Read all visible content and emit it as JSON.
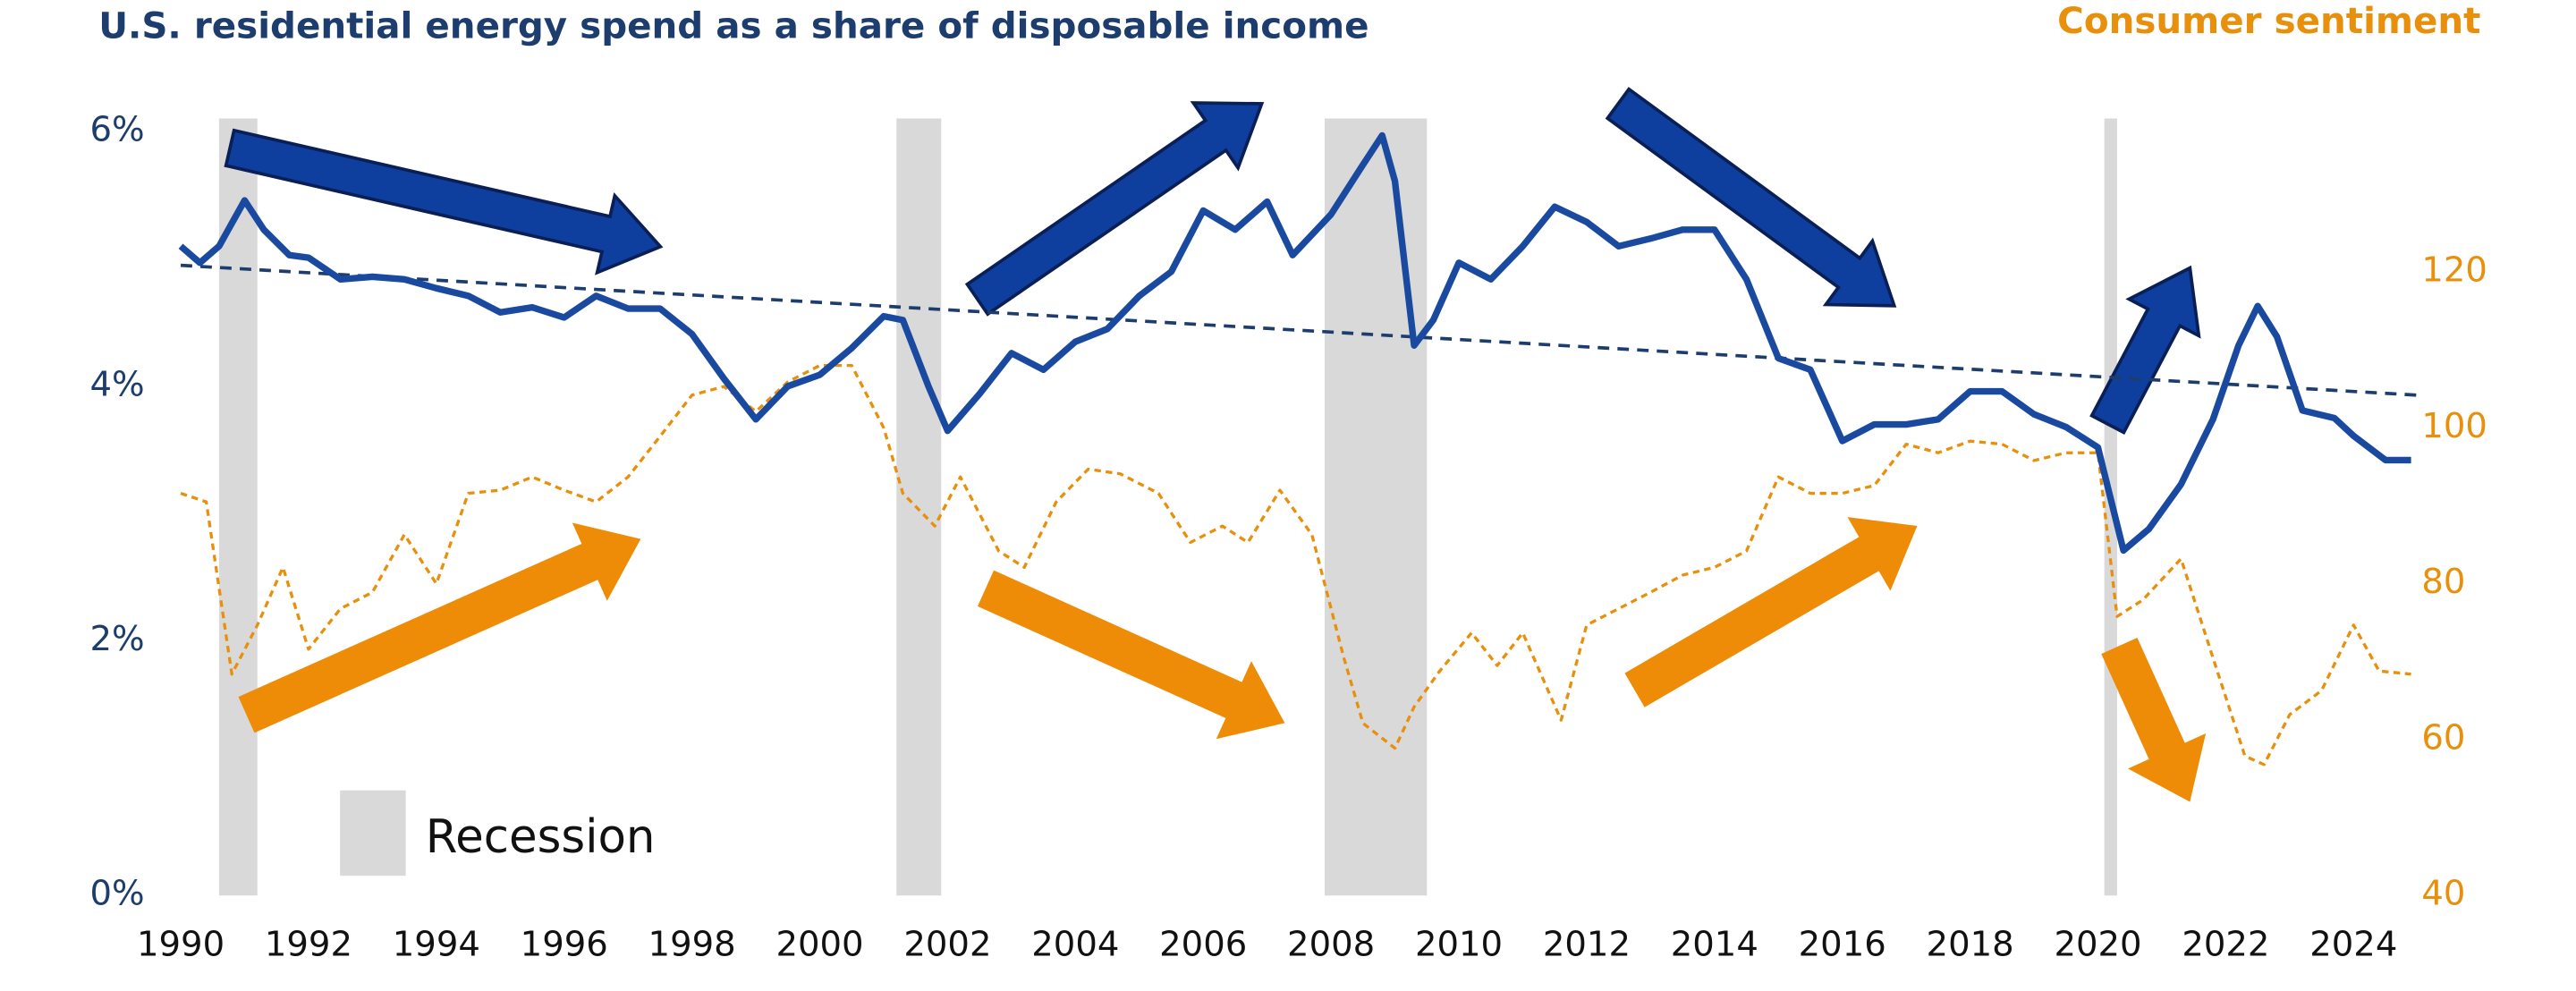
{
  "chart_data": {
    "type": "line",
    "title": "U.S. residential energy spend as a share of disposable income",
    "y2_title": "Consumer sentiment",
    "legend_label": "Recession",
    "xlim": [
      1990,
      2025
    ],
    "xticks": [
      1990,
      1992,
      1994,
      1996,
      1998,
      2000,
      2002,
      2004,
      2006,
      2008,
      2010,
      2012,
      2014,
      2016,
      2018,
      2020,
      2022,
      2024
    ],
    "ylim": [
      0,
      6
    ],
    "yticks": [
      {
        "value": 0,
        "label": "0%"
      },
      {
        "value": 2,
        "label": "2%"
      },
      {
        "value": 4,
        "label": "4%"
      },
      {
        "value": 6,
        "label": "6%"
      }
    ],
    "y2lim": [
      40,
      138
    ],
    "y2ticks": [
      40,
      60,
      80,
      100,
      120
    ],
    "recessions": [
      [
        1990.6,
        1991.2
      ],
      [
        2001.2,
        2001.9
      ],
      [
        2007.9,
        2009.5
      ],
      [
        2020.1,
        2020.3
      ]
    ],
    "recession_color": "#d9d9d9",
    "trendline": {
      "color": "#1d3d6e",
      "x": [
        1990,
        2025
      ],
      "values": [
        4.95,
        3.93
      ]
    },
    "series": [
      {
        "color": "#1a4aa0",
        "x": [
          1990.0,
          1990.3,
          1990.6,
          1991.0,
          1991.3,
          1991.7,
          1992.0,
          1992.5,
          1993.0,
          1993.5,
          1994.0,
          1994.5,
          1995.0,
          1995.5,
          1996.0,
          1996.5,
          1997.0,
          1997.5,
          1998.0,
          1998.5,
          1999.0,
          1999.5,
          2000.0,
          2000.5,
          2001.0,
          2001.3,
          2001.7,
          2002.0,
          2002.5,
          2003.0,
          2003.5,
          2004.0,
          2004.5,
          2005.0,
          2005.5,
          2006.0,
          2006.5,
          2007.0,
          2007.4,
          2008.0,
          2008.5,
          2008.8,
          2009.0,
          2009.3,
          2009.6,
          2010.0,
          2010.5,
          2011.0,
          2011.5,
          2012.0,
          2012.5,
          2013.0,
          2013.5,
          2014.0,
          2014.5,
          2015.0,
          2015.5,
          2016.0,
          2016.5,
          2017.0,
          2017.5,
          2018.0,
          2018.5,
          2019.0,
          2019.5,
          2020.0,
          2020.4,
          2020.8,
          2021.3,
          2021.8,
          2022.2,
          2022.5,
          2022.8,
          2023.2,
          2023.7,
          2024.0,
          2024.5,
          2024.9
        ],
        "values": [
          5.1,
          4.97,
          5.1,
          5.46,
          5.23,
          5.03,
          5.01,
          4.84,
          4.86,
          4.84,
          4.77,
          4.71,
          4.58,
          4.62,
          4.54,
          4.71,
          4.61,
          4.61,
          4.41,
          4.06,
          3.74,
          4.0,
          4.09,
          4.3,
          4.55,
          4.52,
          4.0,
          3.65,
          3.94,
          4.26,
          4.13,
          4.35,
          4.45,
          4.71,
          4.9,
          5.38,
          5.23,
          5.45,
          5.03,
          5.35,
          5.74,
          5.97,
          5.61,
          4.32,
          4.52,
          4.97,
          4.84,
          5.1,
          5.41,
          5.29,
          5.1,
          5.16,
          5.23,
          5.23,
          4.84,
          4.22,
          4.13,
          3.57,
          3.7,
          3.7,
          3.74,
          3.96,
          3.96,
          3.78,
          3.68,
          3.52,
          2.71,
          2.88,
          3.23,
          3.74,
          4.32,
          4.63,
          4.39,
          3.81,
          3.75,
          3.61,
          3.42,
          3.42
        ]
      },
      {
        "color": "#e8900c",
        "axis": "y2",
        "x": [
          1990.0,
          1990.4,
          1990.8,
          1991.2,
          1991.6,
          1992.0,
          1992.5,
          1993.0,
          1993.5,
          1994.0,
          1994.5,
          1995.0,
          1995.5,
          1996.0,
          1996.5,
          1997.0,
          1997.5,
          1998.0,
          1998.5,
          1999.0,
          1999.5,
          2000.0,
          2000.5,
          2001.0,
          2001.3,
          2001.8,
          2002.2,
          2002.8,
          2003.2,
          2003.7,
          2004.2,
          2004.7,
          2005.3,
          2005.8,
          2006.3,
          2006.7,
          2007.2,
          2007.7,
          2008.2,
          2008.5,
          2009.0,
          2009.3,
          2009.7,
          2010.2,
          2010.6,
          2011.0,
          2011.6,
          2012.0,
          2012.5,
          2013.0,
          2013.5,
          2014.0,
          2014.5,
          2015.0,
          2015.5,
          2016.0,
          2016.5,
          2017.0,
          2017.5,
          2018.0,
          2018.5,
          2019.0,
          2019.5,
          2020.0,
          2020.3,
          2020.7,
          2021.3,
          2021.8,
          2022.3,
          2022.6,
          2023.0,
          2023.5,
          2024.0,
          2024.4,
          2024.9
        ],
        "values": [
          91.6,
          90.5,
          68.4,
          74.7,
          82.1,
          71.6,
          76.8,
          78.9,
          86.3,
          80.0,
          91.6,
          92.0,
          93.7,
          92.0,
          90.5,
          93.7,
          98.9,
          104.2,
          105.3,
          102.1,
          105.9,
          108.0,
          108.0,
          100.0,
          91.6,
          87.4,
          93.7,
          84.2,
          82.1,
          90.5,
          94.7,
          94.1,
          91.6,
          85.3,
          87.4,
          85.3,
          92.0,
          86.3,
          70.5,
          62.1,
          58.9,
          64.2,
          68.8,
          73.7,
          69.5,
          73.7,
          62.5,
          74.7,
          76.8,
          78.9,
          81.1,
          82.1,
          84.2,
          93.7,
          91.6,
          91.6,
          92.6,
          97.9,
          96.8,
          98.3,
          97.9,
          95.8,
          96.8,
          96.8,
          75.8,
          77.9,
          83.2,
          70.5,
          57.9,
          56.8,
          63.2,
          66.3,
          74.7,
          68.8,
          68.4
        ]
      }
    ]
  }
}
